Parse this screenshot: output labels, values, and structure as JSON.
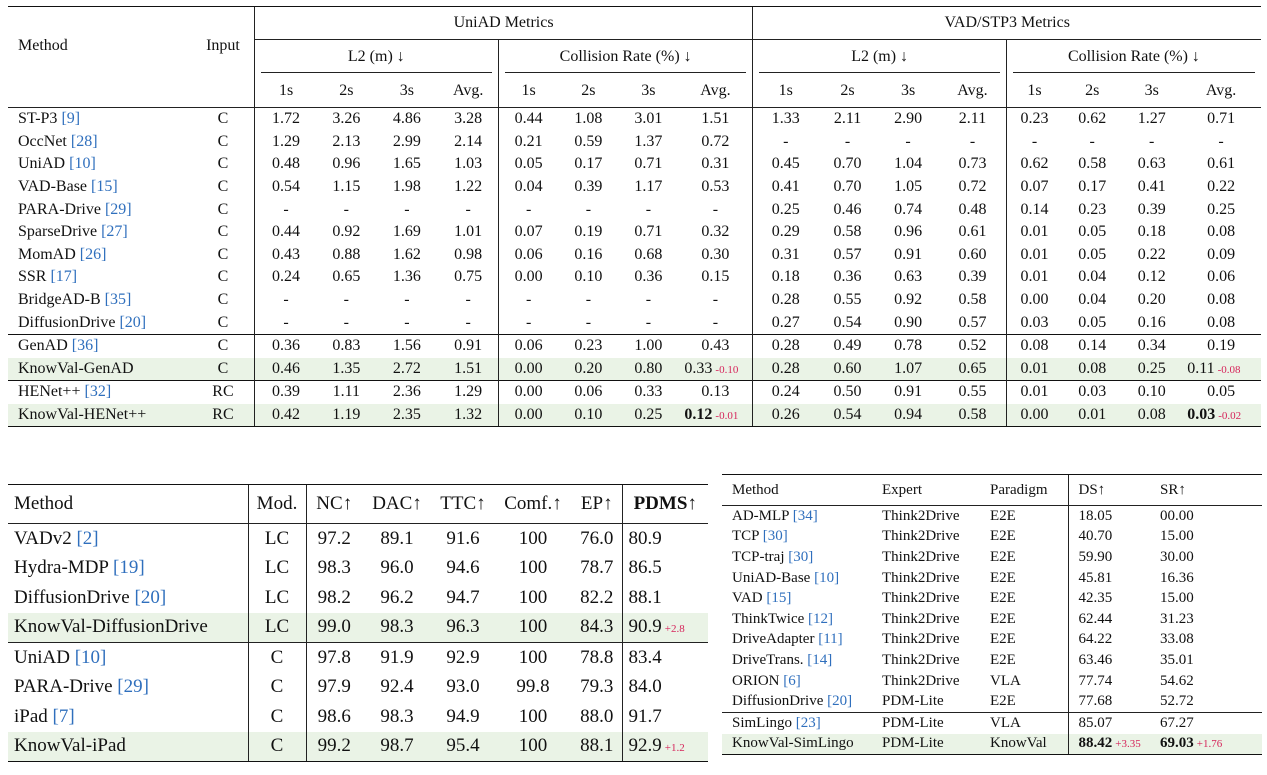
{
  "table1": {
    "headers": {
      "method": "Method",
      "input": "Input",
      "uniad": "UniAD Metrics",
      "vad": "VAD/STP3 Metrics",
      "l2": "L2 (m) ↓",
      "collision": "Collision Rate (%) ↓",
      "horizons": [
        "1s",
        "2s",
        "3s",
        "Avg."
      ]
    },
    "rows": [
      {
        "name": "ST-P3",
        "cite": "[9]",
        "input": "C",
        "v": [
          "1.72",
          "3.26",
          "4.86",
          "3.28",
          "0.44",
          "1.08",
          "3.01",
          "1.51",
          "1.33",
          "2.11",
          "2.90",
          "2.11",
          "0.23",
          "0.62",
          "1.27",
          "0.71"
        ]
      },
      {
        "name": "OccNet",
        "cite": "[28]",
        "input": "C",
        "v": [
          "1.29",
          "2.13",
          "2.99",
          "2.14",
          "0.21",
          "0.59",
          "1.37",
          "0.72",
          "-",
          "-",
          "-",
          "-",
          "-",
          "-",
          "-",
          "-"
        ]
      },
      {
        "name": "UniAD",
        "cite": "[10]",
        "input": "C",
        "v": [
          "0.48",
          "0.96",
          "1.65",
          "1.03",
          "0.05",
          "0.17",
          "0.71",
          "0.31",
          "0.45",
          "0.70",
          "1.04",
          "0.73",
          "0.62",
          "0.58",
          "0.63",
          "0.61"
        ]
      },
      {
        "name": "VAD-Base",
        "cite": "[15]",
        "input": "C",
        "v": [
          "0.54",
          "1.15",
          "1.98",
          "1.22",
          "0.04",
          "0.39",
          "1.17",
          "0.53",
          "0.41",
          "0.70",
          "1.05",
          "0.72",
          "0.07",
          "0.17",
          "0.41",
          "0.22"
        ]
      },
      {
        "name": "PARA-Drive",
        "cite": "[29]",
        "input": "C",
        "v": [
          "-",
          "-",
          "-",
          "-",
          "-",
          "-",
          "-",
          "-",
          "0.25",
          "0.46",
          "0.74",
          "0.48",
          "0.14",
          "0.23",
          "0.39",
          "0.25"
        ]
      },
      {
        "name": "SparseDrive",
        "cite": "[27]",
        "input": "C",
        "v": [
          "0.44",
          "0.92",
          "1.69",
          "1.01",
          "0.07",
          "0.19",
          "0.71",
          "0.32",
          "0.29",
          "0.58",
          "0.96",
          "0.61",
          "0.01",
          "0.05",
          "0.18",
          "0.08"
        ]
      },
      {
        "name": "MomAD",
        "cite": "[26]",
        "input": "C",
        "v": [
          "0.43",
          "0.88",
          "1.62",
          "0.98",
          "0.06",
          "0.16",
          "0.68",
          "0.30",
          "0.31",
          "0.57",
          "0.91",
          "0.60",
          "0.01",
          "0.05",
          "0.22",
          "0.09"
        ]
      },
      {
        "name": "SSR",
        "cite": "[17]",
        "input": "C",
        "v": [
          "0.24",
          "0.65",
          "1.36",
          "0.75",
          "0.00",
          "0.10",
          "0.36",
          "0.15",
          "0.18",
          "0.36",
          "0.63",
          "0.39",
          "0.01",
          "0.04",
          "0.12",
          "0.06"
        ]
      },
      {
        "name": "BridgeAD-B",
        "cite": "[35]",
        "input": "C",
        "v": [
          "-",
          "-",
          "-",
          "-",
          "-",
          "-",
          "-",
          "-",
          "0.28",
          "0.55",
          "0.92",
          "0.58",
          "0.00",
          "0.04",
          "0.20",
          "0.08"
        ]
      },
      {
        "name": "DiffusionDrive",
        "cite": "[20]",
        "input": "C",
        "v": [
          "-",
          "-",
          "-",
          "-",
          "-",
          "-",
          "-",
          "-",
          "0.27",
          "0.54",
          "0.90",
          "0.57",
          "0.03",
          "0.05",
          "0.16",
          "0.08"
        ]
      },
      {
        "name": "GenAD",
        "cite": "[36]",
        "input": "C",
        "v": [
          "0.36",
          "0.83",
          "1.56",
          "0.91",
          "0.06",
          "0.23",
          "1.00",
          "0.43",
          "0.28",
          "0.49",
          "0.78",
          "0.52",
          "0.08",
          "0.14",
          "0.34",
          "0.19"
        ]
      },
      {
        "name": "KnowVal-GenAD",
        "cite": "",
        "input": "C",
        "v": [
          "0.46",
          "1.35",
          "2.72",
          "1.51",
          "0.00",
          "0.20",
          "0.80",
          "0.33",
          "0.28",
          "0.60",
          "1.07",
          "0.65",
          "0.01",
          "0.08",
          "0.25",
          "0.11"
        ],
        "delta_uniad": "-0.10",
        "delta_vad": "-0.08"
      },
      {
        "name": "HENet++",
        "cite": "[32]",
        "input": "RC",
        "v": [
          "0.39",
          "1.11",
          "2.36",
          "1.29",
          "0.00",
          "0.06",
          "0.33",
          "0.13",
          "0.24",
          "0.50",
          "0.91",
          "0.55",
          "0.01",
          "0.03",
          "0.10",
          "0.05"
        ]
      },
      {
        "name": "KnowVal-HENet++",
        "cite": "",
        "input": "RC",
        "v": [
          "0.42",
          "1.19",
          "2.35",
          "1.32",
          "0.00",
          "0.10",
          "0.25",
          "0.12",
          "0.26",
          "0.54",
          "0.94",
          "0.58",
          "0.00",
          "0.01",
          "0.08",
          "0.03"
        ],
        "delta_uniad": "-0.01",
        "delta_vad": "-0.02"
      }
    ]
  },
  "table2": {
    "headers": [
      "Method",
      "Mod.",
      "NC↑",
      "DAC↑",
      "TTC↑",
      "Comf.↑",
      "EP↑",
      "PDMS↑"
    ],
    "rows": [
      {
        "name": "VADv2",
        "cite": "[2]",
        "mod": "LC",
        "v": [
          "97.2",
          "89.1",
          "91.6",
          "100",
          "76.0",
          "80.9"
        ]
      },
      {
        "name": "Hydra-MDP",
        "cite": "[19]",
        "mod": "LC",
        "v": [
          "98.3",
          "96.0",
          "94.6",
          "100",
          "78.7",
          "86.5"
        ]
      },
      {
        "name": "DiffusionDrive",
        "cite": "[20]",
        "mod": "LC",
        "v": [
          "98.2",
          "96.2",
          "94.7",
          "100",
          "82.2",
          "88.1"
        ]
      },
      {
        "name": "KnowVal-DiffusionDrive",
        "cite": "",
        "mod": "LC",
        "v": [
          "99.0",
          "98.3",
          "96.3",
          "100",
          "84.3",
          "90.9"
        ],
        "delta": "+2.8"
      },
      {
        "name": "UniAD",
        "cite": "[10]",
        "mod": "C",
        "v": [
          "97.8",
          "91.9",
          "92.9",
          "100",
          "78.8",
          "83.4"
        ]
      },
      {
        "name": "PARA-Drive",
        "cite": "[29]",
        "mod": "C",
        "v": [
          "97.9",
          "92.4",
          "93.0",
          "99.8",
          "79.3",
          "84.0"
        ]
      },
      {
        "name": "iPad",
        "cite": "[7]",
        "mod": "C",
        "v": [
          "98.6",
          "98.3",
          "94.9",
          "100",
          "88.0",
          "91.7"
        ]
      },
      {
        "name": "KnowVal-iPad",
        "cite": "",
        "mod": "C",
        "v": [
          "99.2",
          "98.7",
          "95.4",
          "100",
          "88.1",
          "92.9"
        ],
        "delta": "+1.2"
      }
    ]
  },
  "table3": {
    "headers": [
      "Method",
      "Expert",
      "Paradigm",
      "DS↑",
      "SR↑"
    ],
    "rows": [
      {
        "name": "AD-MLP",
        "cite": "[34]",
        "expert": "Think2Drive",
        "paradigm": "E2E",
        "ds": "18.05",
        "sr": "00.00"
      },
      {
        "name": "TCP",
        "cite": "[30]",
        "expert": "Think2Drive",
        "paradigm": "E2E",
        "ds": "40.70",
        "sr": "15.00"
      },
      {
        "name": "TCP-traj",
        "cite": "[30]",
        "expert": "Think2Drive",
        "paradigm": "E2E",
        "ds": "59.90",
        "sr": "30.00"
      },
      {
        "name": "UniAD-Base",
        "cite": "[10]",
        "expert": "Think2Drive",
        "paradigm": "E2E",
        "ds": "45.81",
        "sr": "16.36"
      },
      {
        "name": "VAD",
        "cite": "[15]",
        "expert": "Think2Drive",
        "paradigm": "E2E",
        "ds": "42.35",
        "sr": "15.00"
      },
      {
        "name": "ThinkTwice",
        "cite": "[12]",
        "expert": "Think2Drive",
        "paradigm": "E2E",
        "ds": "62.44",
        "sr": "31.23"
      },
      {
        "name": "DriveAdapter",
        "cite": "[11]",
        "expert": "Think2Drive",
        "paradigm": "E2E",
        "ds": "64.22",
        "sr": "33.08"
      },
      {
        "name": "DriveTrans.",
        "cite": "[14]",
        "expert": "Think2Drive",
        "paradigm": "E2E",
        "ds": "63.46",
        "sr": "35.01"
      },
      {
        "name": "ORION",
        "cite": "[6]",
        "expert": "Think2Drive",
        "paradigm": "VLA",
        "ds": "77.74",
        "sr": "54.62"
      },
      {
        "name": "DiffusionDrive",
        "cite": "[20]",
        "expert": "PDM-Lite",
        "paradigm": "E2E",
        "ds": "77.68",
        "sr": "52.72"
      },
      {
        "name": "SimLingo",
        "cite": "[23]",
        "expert": "PDM-Lite",
        "paradigm": "VLA",
        "ds": "85.07",
        "sr": "67.27"
      },
      {
        "name": "KnowVal-SimLingo",
        "cite": "",
        "expert": "PDM-Lite",
        "paradigm": "KnowVal",
        "ds": "88.42",
        "sr": "69.03",
        "delta_ds": "+3.35",
        "delta_sr": "+1.76"
      }
    ]
  }
}
